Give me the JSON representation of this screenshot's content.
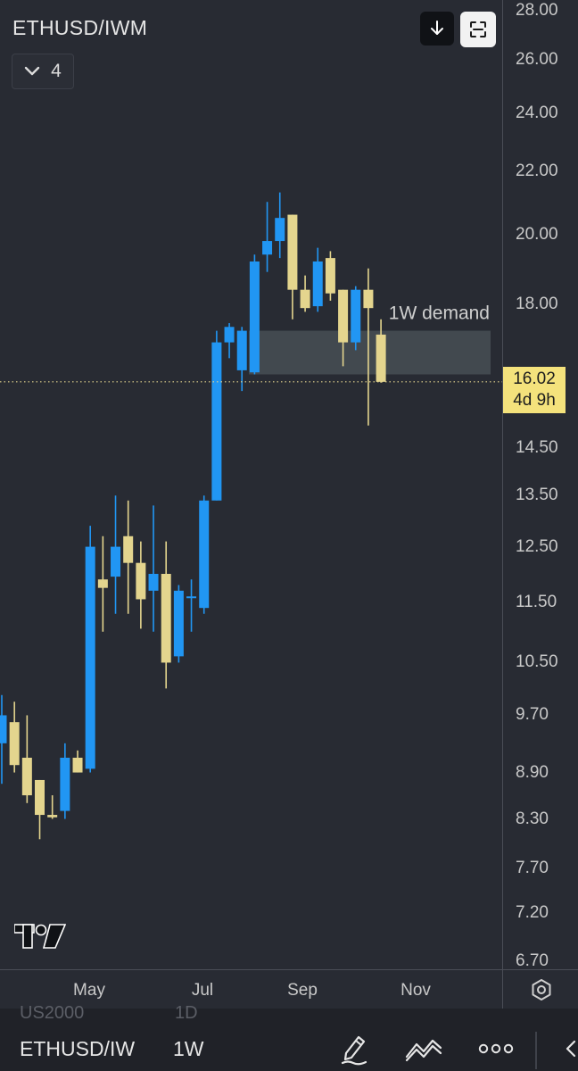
{
  "header": {
    "symbol": "ETHUSD/IWM",
    "indicators_count": "4"
  },
  "price_label": {
    "price": "16.02",
    "countdown": "4d 9h"
  },
  "price_ticks": [
    "28.00",
    "26.00",
    "24.00",
    "22.00",
    "20.00",
    "18.00",
    "14.50",
    "13.50",
    "12.50",
    "11.50",
    "10.50",
    "9.70",
    "8.90",
    "8.30",
    "7.70",
    "7.20",
    "6.70"
  ],
  "time_ticks": [
    "May",
    "Jul",
    "Sep",
    "Nov"
  ],
  "bottom_bar": {
    "ghost_symbol": "US2000",
    "ghost_interval": "1D",
    "symbol": "ETHUSD/IW",
    "interval": "1W"
  },
  "colors": {
    "up": "#2196f3",
    "down": "#e4d58e",
    "background": "#282b33",
    "zone": "#4b545a"
  },
  "icons": [
    "chevron-down-icon",
    "download-icon",
    "fullscreen-icon",
    "settings-icon",
    "pen-icon",
    "trend-icon",
    "more-icon",
    "back-icon",
    "tradingview-logo"
  ],
  "chart_data": {
    "type": "candlestick",
    "timeframe": "1W",
    "y_scale": "log",
    "ylim": [
      6.7,
      28.0
    ],
    "last_price": 16.02,
    "annotations": [
      {
        "label": "1W demand",
        "type": "zone",
        "from": 16.2,
        "to": 17.3
      }
    ],
    "candles": [
      {
        "o": 9.3,
        "h": 10.0,
        "l": 8.75,
        "c": 9.7
      },
      {
        "o": 9.6,
        "h": 9.9,
        "l": 8.9,
        "c": 9.0
      },
      {
        "o": 9.1,
        "h": 9.7,
        "l": 8.5,
        "c": 8.6
      },
      {
        "o": 8.8,
        "h": 8.8,
        "l": 8.05,
        "c": 8.35
      },
      {
        "o": 8.35,
        "h": 8.6,
        "l": 8.3,
        "c": 8.32
      },
      {
        "o": 8.4,
        "h": 9.3,
        "l": 8.3,
        "c": 9.1
      },
      {
        "o": 9.1,
        "h": 9.2,
        "l": 8.9,
        "c": 8.9
      },
      {
        "o": 8.95,
        "h": 12.9,
        "l": 8.9,
        "c": 12.5
      },
      {
        "o": 11.9,
        "h": 12.7,
        "l": 11.0,
        "c": 11.75
      },
      {
        "o": 11.95,
        "h": 13.5,
        "l": 11.3,
        "c": 12.5
      },
      {
        "o": 12.7,
        "h": 13.4,
        "l": 11.3,
        "c": 12.2
      },
      {
        "o": 12.2,
        "h": 12.6,
        "l": 11.05,
        "c": 11.55
      },
      {
        "o": 11.7,
        "h": 13.3,
        "l": 11.0,
        "c": 12.0
      },
      {
        "o": 12.0,
        "h": 12.6,
        "l": 10.1,
        "c": 10.5
      },
      {
        "o": 10.6,
        "h": 11.8,
        "l": 10.5,
        "c": 11.7
      },
      {
        "o": 11.6,
        "h": 11.9,
        "l": 11.0,
        "c": 11.6
      },
      {
        "o": 11.4,
        "h": 13.5,
        "l": 11.3,
        "c": 13.4
      },
      {
        "o": 13.4,
        "h": 17.3,
        "l": 13.4,
        "c": 17.0
      },
      {
        "o": 17.0,
        "h": 17.5,
        "l": 16.6,
        "c": 17.4
      },
      {
        "o": 16.3,
        "h": 17.4,
        "l": 15.8,
        "c": 17.3
      },
      {
        "o": 16.25,
        "h": 19.4,
        "l": 16.2,
        "c": 19.2
      },
      {
        "o": 19.4,
        "h": 21.0,
        "l": 18.9,
        "c": 19.8
      },
      {
        "o": 19.8,
        "h": 21.3,
        "l": 19.3,
        "c": 20.5
      },
      {
        "o": 20.6,
        "h": 20.6,
        "l": 17.6,
        "c": 18.4
      },
      {
        "o": 18.4,
        "h": 18.8,
        "l": 17.8,
        "c": 17.9
      },
      {
        "o": 17.95,
        "h": 19.6,
        "l": 17.8,
        "c": 19.2
      },
      {
        "o": 19.3,
        "h": 19.5,
        "l": 18.1,
        "c": 18.3
      },
      {
        "o": 18.4,
        "h": 18.4,
        "l": 16.4,
        "c": 17.0
      },
      {
        "o": 17.0,
        "h": 18.5,
        "l": 16.8,
        "c": 18.4
      },
      {
        "o": 18.4,
        "h": 19.0,
        "l": 15.0,
        "c": 17.9
      },
      {
        "o": 17.2,
        "h": 17.6,
        "l": 16.0,
        "c": 16.02
      }
    ]
  }
}
